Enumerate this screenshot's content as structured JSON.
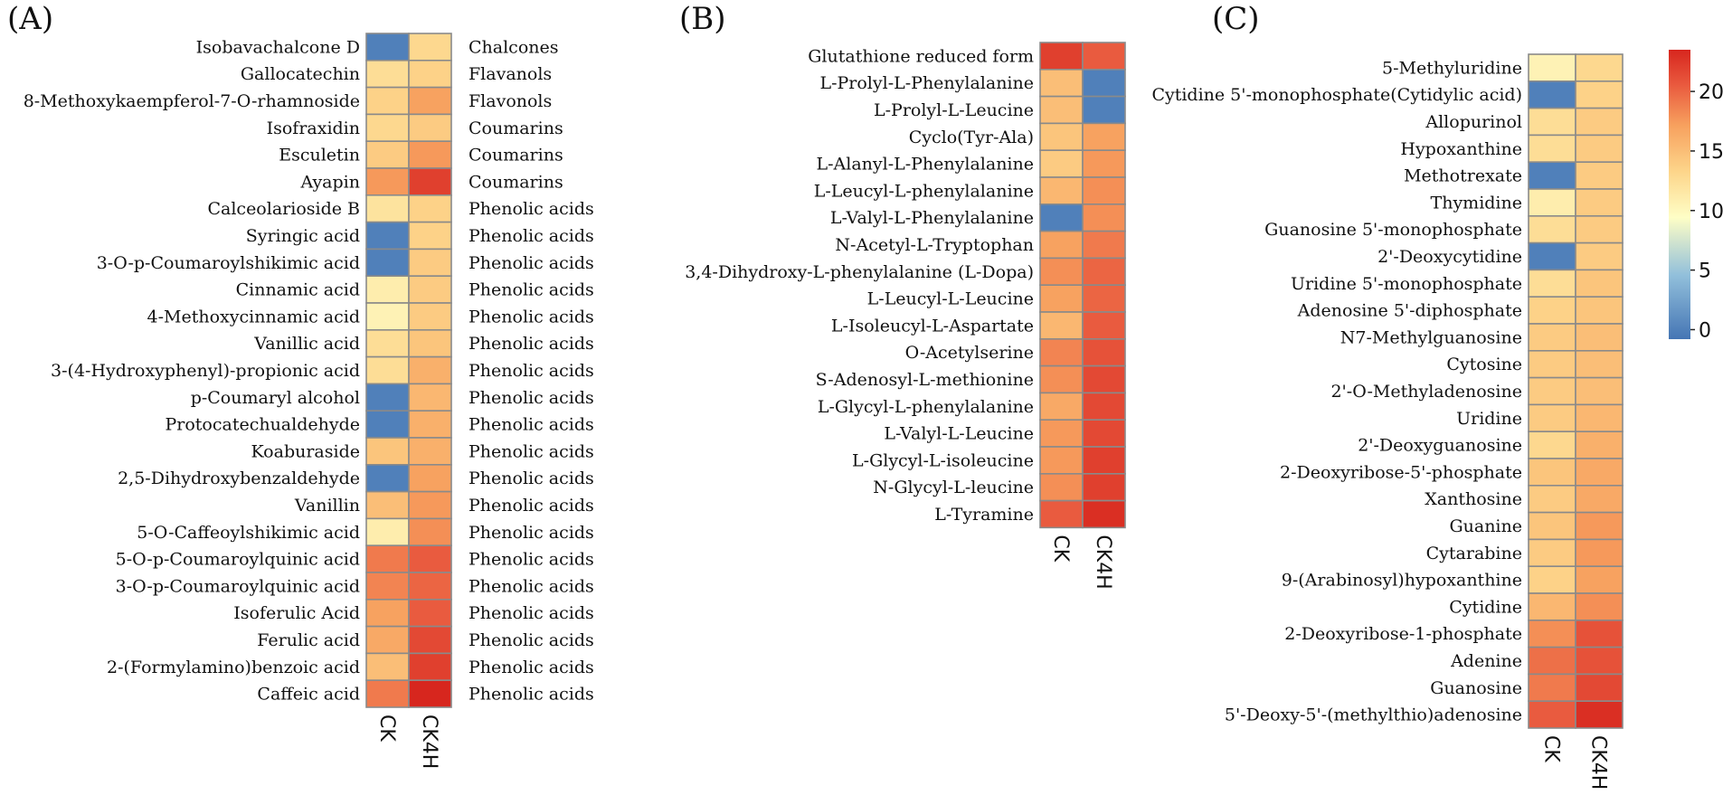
{
  "chart_data": [
    {
      "type": "heatmap",
      "panel": "(A)",
      "columns": [
        "CK",
        "CK4H"
      ],
      "rows": [
        {
          "name": "Isobavachalcone D",
          "group": "Chalcones",
          "values": [
            0,
            13
          ]
        },
        {
          "name": "Gallocatechin",
          "group": "Flavanols",
          "values": [
            12.5,
            13.5
          ]
        },
        {
          "name": "8-Methoxykaempferol-7-O-rhamnoside",
          "group": "Flavonols",
          "values": [
            13.5,
            17
          ]
        },
        {
          "name": "Isofraxidin",
          "group": "Coumarins",
          "values": [
            13,
            14
          ]
        },
        {
          "name": "Esculetin",
          "group": "Coumarins",
          "values": [
            14,
            17.5
          ]
        },
        {
          "name": "Ayapin",
          "group": "Coumarins",
          "values": [
            17.5,
            22
          ]
        },
        {
          "name": "Calceolarioside B",
          "group": "Phenolic acids",
          "values": [
            12,
            13.5
          ]
        },
        {
          "name": "Syringic acid",
          "group": "Phenolic acids",
          "values": [
            0,
            13.5
          ]
        },
        {
          "name": "3-O-p-Coumaroylshikimic acid",
          "group": "Phenolic acids",
          "values": [
            0,
            14
          ]
        },
        {
          "name": "Cinnamic acid",
          "group": "Phenolic acids",
          "values": [
            11,
            14
          ]
        },
        {
          "name": "4-Methoxycinnamic acid",
          "group": "Phenolic acids",
          "values": [
            10.5,
            14
          ]
        },
        {
          "name": "Vanillic acid",
          "group": "Phenolic acids",
          "values": [
            12.5,
            14.5
          ]
        },
        {
          "name": "3-(4-Hydroxyphenyl)-propionic acid",
          "group": "Phenolic acids",
          "values": [
            12.5,
            16
          ]
        },
        {
          "name": "p-Coumaryl alcohol",
          "group": "Phenolic acids",
          "values": [
            0,
            15.5
          ]
        },
        {
          "name": "Protocatechualdehyde",
          "group": "Phenolic acids",
          "values": [
            0,
            16
          ]
        },
        {
          "name": "Koaburaside",
          "group": "Phenolic acids",
          "values": [
            14.5,
            16
          ]
        },
        {
          "name": "2,5-Dihydroxybenzaldehyde",
          "group": "Phenolic acids",
          "values": [
            0,
            17
          ]
        },
        {
          "name": "Vanillin",
          "group": "Phenolic acids",
          "values": [
            15,
            17.5
          ]
        },
        {
          "name": "5-O-Caffeoylshikimic acid",
          "group": "Phenolic acids",
          "values": [
            11,
            18
          ]
        },
        {
          "name": "5-O-p-Coumaroylquinic acid",
          "group": "Phenolic acids",
          "values": [
            19,
            20.5
          ]
        },
        {
          "name": "3-O-p-Coumaroylquinic acid",
          "group": "Phenolic acids",
          "values": [
            18.5,
            20
          ]
        },
        {
          "name": "Isoferulic Acid",
          "group": "Phenolic acids",
          "values": [
            17,
            20.5
          ]
        },
        {
          "name": "Ferulic acid",
          "group": "Phenolic acids",
          "values": [
            16.5,
            21.5
          ]
        },
        {
          "name": "2-(Formylamino)benzoic acid",
          "group": "Phenolic acids",
          "values": [
            15,
            22
          ]
        },
        {
          "name": "Caffeic acid",
          "group": "Phenolic acids",
          "values": [
            19,
            23.5
          ]
        }
      ]
    },
    {
      "type": "heatmap",
      "panel": "(B)",
      "columns": [
        "CK",
        "CK4H"
      ],
      "rows": [
        {
          "name": "Glutathione reduced form",
          "values": [
            22,
            20.5
          ]
        },
        {
          "name": "L-Prolyl-L-Phenylalanine",
          "values": [
            15,
            0
          ]
        },
        {
          "name": "L-Prolyl-L-Leucine",
          "values": [
            15,
            0
          ]
        },
        {
          "name": "Cyclo(Tyr-Ala)",
          "values": [
            14.5,
            17
          ]
        },
        {
          "name": "L-Alanyl-L-Phenylalanine",
          "values": [
            14,
            17.5
          ]
        },
        {
          "name": "L-Leucyl-L-phenylalanine",
          "values": [
            15.5,
            18
          ]
        },
        {
          "name": "L-Valyl-L-Phenylalanine",
          "values": [
            0,
            18
          ]
        },
        {
          "name": "N-Acetyl-L-Tryptophan",
          "values": [
            17,
            19
          ]
        },
        {
          "name": "3,4-Dihydroxy-L-phenylalanine (L-Dopa)",
          "values": [
            18,
            20
          ]
        },
        {
          "name": "L-Leucyl-L-Leucine",
          "values": [
            17,
            20
          ]
        },
        {
          "name": "L-Isoleucyl-L-Aspartate",
          "values": [
            15.5,
            20.5
          ]
        },
        {
          "name": "O-Acetylserine",
          "values": [
            18.5,
            21
          ]
        },
        {
          "name": "S-Adenosyl-L-methionine",
          "values": [
            18,
            21.5
          ]
        },
        {
          "name": "L-Glycyl-L-phenylalanine",
          "values": [
            16.5,
            21.5
          ]
        },
        {
          "name": "L-Valyl-L-Leucine",
          "values": [
            17.5,
            21.5
          ]
        },
        {
          "name": "L-Glycyl-L-isoleucine",
          "values": [
            17.5,
            22
          ]
        },
        {
          "name": "N-Glycyl-L-leucine",
          "values": [
            18,
            22
          ]
        },
        {
          "name": "L-Tyramine",
          "values": [
            20.5,
            23
          ]
        }
      ]
    },
    {
      "type": "heatmap",
      "panel": "(C)",
      "columns": [
        "CK",
        "CK4H"
      ],
      "rows": [
        {
          "name": "5-Methyluridine",
          "values": [
            10.5,
            13
          ]
        },
        {
          "name": "Cytidine 5'-monophosphate(Cytidylic acid)",
          "values": [
            0,
            13.5
          ]
        },
        {
          "name": "Allopurinol",
          "values": [
            12.5,
            14
          ]
        },
        {
          "name": "Hypoxanthine",
          "values": [
            12.5,
            14
          ]
        },
        {
          "name": "Methotrexate",
          "values": [
            0,
            14
          ]
        },
        {
          "name": "Thymidine",
          "values": [
            11,
            14
          ]
        },
        {
          "name": "Guanosine 5'-monophosphate",
          "values": [
            12.5,
            14
          ]
        },
        {
          "name": "2'-Deoxycytidine",
          "values": [
            0,
            14
          ]
        },
        {
          "name": "Uridine 5'-monophosphate",
          "values": [
            12.5,
            14.5
          ]
        },
        {
          "name": "Adenosine 5'-diphosphate",
          "values": [
            13.5,
            14.5
          ]
        },
        {
          "name": "N7-Methylguanosine",
          "values": [
            14,
            15
          ]
        },
        {
          "name": "Cytosine",
          "values": [
            14,
            15
          ]
        },
        {
          "name": "2'-O-Methyladenosine",
          "values": [
            14,
            15
          ]
        },
        {
          "name": "Uridine",
          "values": [
            14,
            15.5
          ]
        },
        {
          "name": "2'-Deoxyguanosine",
          "values": [
            13,
            16
          ]
        },
        {
          "name": "2-Deoxyribose-5'-phosphate",
          "values": [
            14.5,
            16.5
          ]
        },
        {
          "name": "Xanthosine",
          "values": [
            14,
            16.5
          ]
        },
        {
          "name": "Guanine",
          "values": [
            14.5,
            17.5
          ]
        },
        {
          "name": "Cytarabine",
          "values": [
            14,
            17.5
          ]
        },
        {
          "name": "9-(Arabinosyl)hypoxanthine",
          "values": [
            13.5,
            17
          ]
        },
        {
          "name": "Cytidine",
          "values": [
            15.5,
            18
          ]
        },
        {
          "name": "2-Deoxyribose-1-phosphate",
          "values": [
            18,
            21
          ]
        },
        {
          "name": "Adenine",
          "values": [
            19.5,
            21
          ]
        },
        {
          "name": "Guanosine",
          "values": [
            19,
            21.5
          ]
        },
        {
          "name": "5'-Deoxy-5'-(methylthio)adenosine",
          "values": [
            20.5,
            23
          ]
        }
      ]
    }
  ],
  "legend": {
    "ticks": [
      "0",
      "5",
      "10",
      "15",
      "20"
    ],
    "min": -0.8,
    "max": 23.5
  },
  "colors": {
    "scale": [
      "#4575b4",
      "#91bfdb",
      "#fefec6",
      "#fdd58a",
      "#f7a05e",
      "#e9593e",
      "#d7261e"
    ],
    "cell_border": "#8a8a8a"
  }
}
